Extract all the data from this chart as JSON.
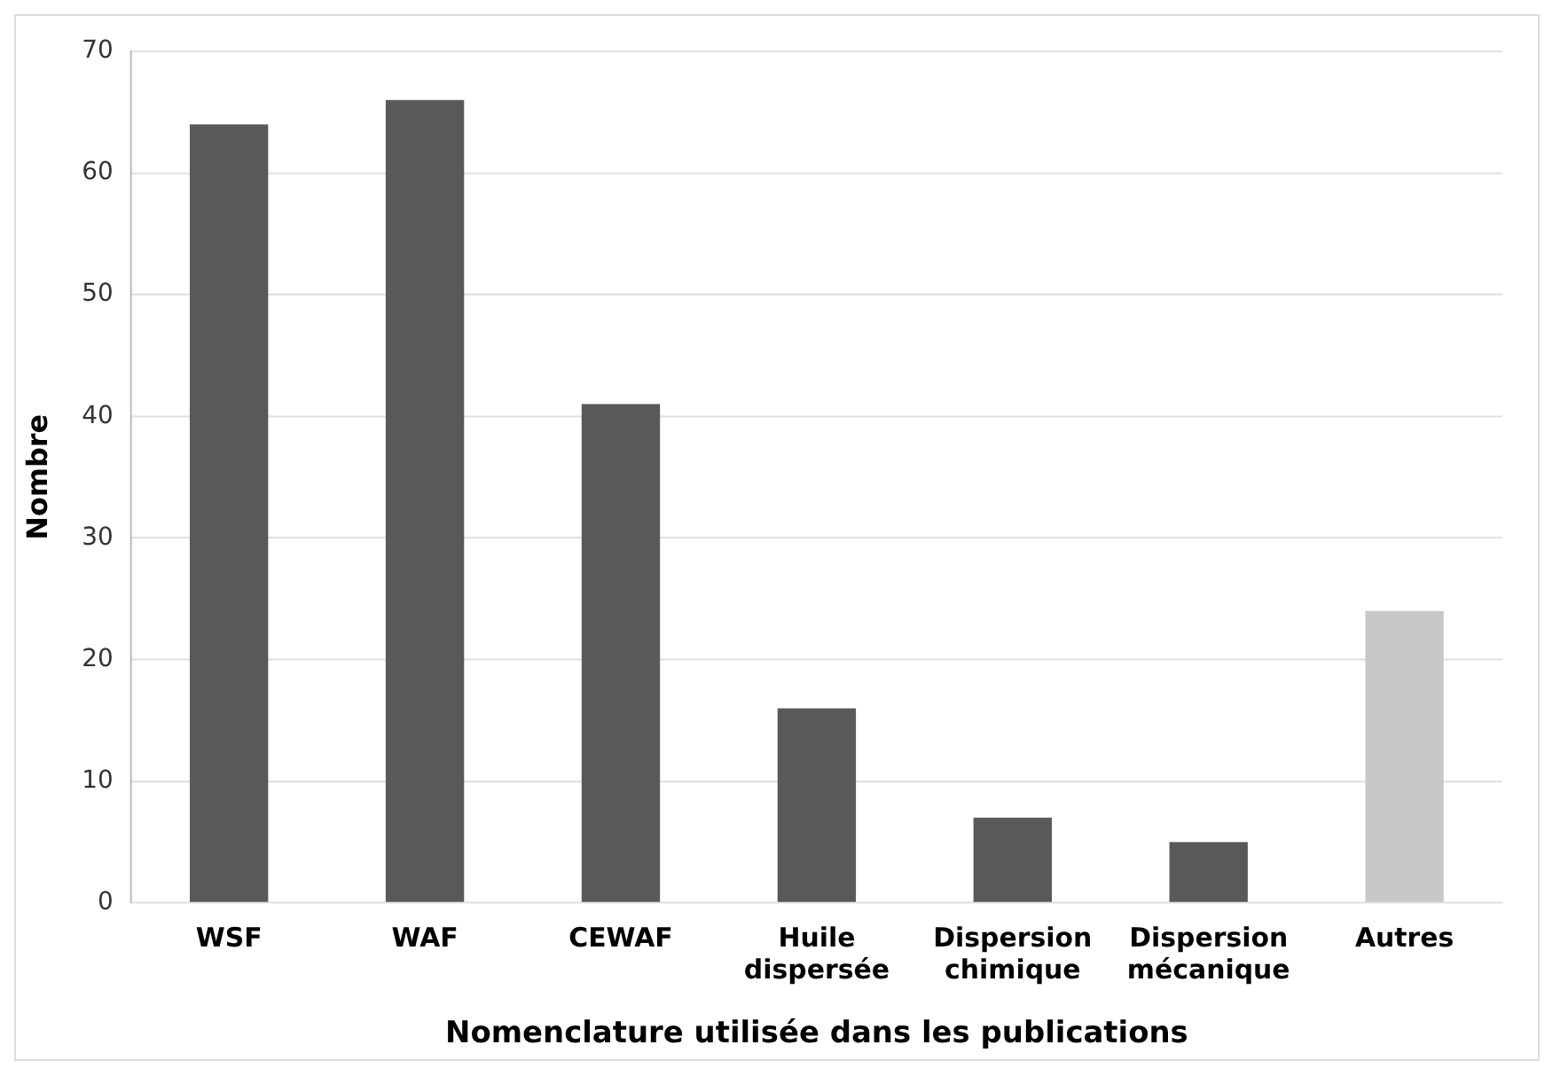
{
  "chart_data": {
    "type": "bar",
    "xlabel": "Nomenclature utilisée dans les publications",
    "ylabel": "Nombre",
    "categories": [
      "WSF",
      "WAF",
      "CEWAF",
      "Huile dispersée",
      "Dispersion chimique",
      "Dispersion mécanique",
      "Autres"
    ],
    "values": [
      64,
      66,
      41,
      16,
      7,
      5,
      24
    ],
    "colors": [
      "#595959",
      "#595959",
      "#595959",
      "#595959",
      "#595959",
      "#595959",
      "#c8c8c8"
    ],
    "ylim": [
      0,
      70
    ],
    "yticks": [
      0,
      10,
      20,
      30,
      40,
      50,
      60,
      70
    ],
    "grid": "y",
    "legend": false
  }
}
